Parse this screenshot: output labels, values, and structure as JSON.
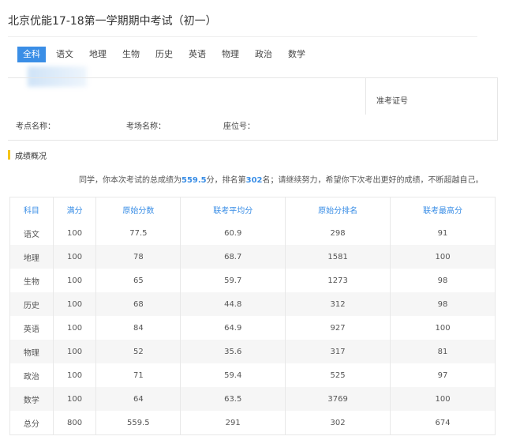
{
  "header": {
    "title": "北京优能17-18第一学期期中考试（初一）"
  },
  "tabs": [
    "全科",
    "语文",
    "地理",
    "生物",
    "历史",
    "英语",
    "物理",
    "政治",
    "数学"
  ],
  "info": {
    "ticket": "准考证号",
    "site": "考点名称：",
    "room": "考场名称：",
    "seat": "座位号："
  },
  "section": {
    "title": "成绩概况"
  },
  "summary": {
    "prefix": "同学，你本次考试的总成绩为",
    "score": "559.5",
    "middle": "分，排名第",
    "rank": "302",
    "suffix": "名；请继续努力，希望你下次考出更好的成绩，不断超越自己。"
  },
  "table": {
    "columns": [
      "科目",
      "满分",
      "原始分数",
      "联考平均分",
      "原始分排名",
      "联考最高分"
    ],
    "rows": [
      [
        "语文",
        "100",
        "77.5",
        "60.9",
        "298",
        "91"
      ],
      [
        "地理",
        "100",
        "78",
        "68.7",
        "1581",
        "100"
      ],
      [
        "生物",
        "100",
        "65",
        "59.7",
        "1273",
        "98"
      ],
      [
        "历史",
        "100",
        "68",
        "44.8",
        "312",
        "98"
      ],
      [
        "英语",
        "100",
        "84",
        "64.9",
        "927",
        "100"
      ],
      [
        "物理",
        "100",
        "52",
        "35.6",
        "317",
        "81"
      ],
      [
        "政治",
        "100",
        "71",
        "59.4",
        "525",
        "97"
      ],
      [
        "数学",
        "100",
        "64",
        "63.5",
        "3769",
        "100"
      ],
      [
        "总分",
        "800",
        "559.5",
        "291",
        "302",
        "674"
      ]
    ]
  }
}
